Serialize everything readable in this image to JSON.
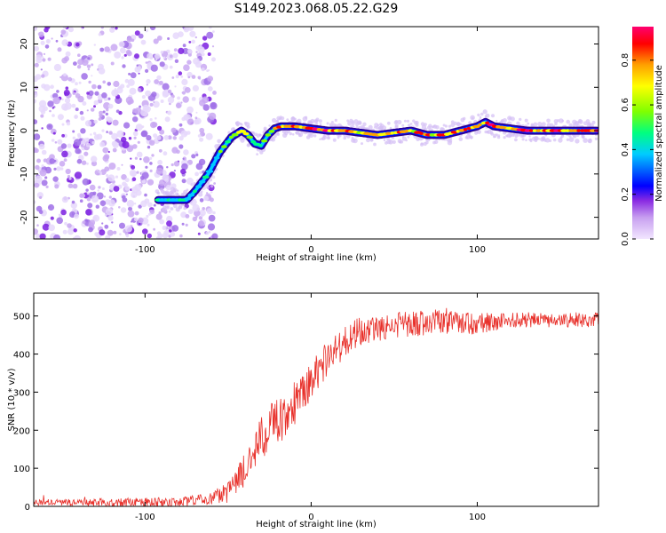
{
  "figure": {
    "title": "S149.2023.068.05.22.G29"
  },
  "colors": {
    "snr_line": "#e8302a",
    "frame": "#000000",
    "background": "#ffffff"
  },
  "chart_data": [
    {
      "type": "heatmap",
      "xlabel": "Height of straight line (km)",
      "ylabel": "Frequency (Hz)",
      "xlim": [
        -167,
        173
      ],
      "ylim": [
        -25,
        24
      ],
      "x_ticks": [
        "-100",
        "0",
        "100"
      ],
      "x_tick_values": [
        -100,
        0,
        100
      ],
      "y_ticks": [
        "-20",
        "-10",
        "0",
        "10",
        "20"
      ],
      "y_tick_values": [
        -20,
        -10,
        0,
        10,
        20
      ],
      "colorbar": {
        "label": "Normalized spectral amplitude",
        "range": [
          0.0,
          0.95
        ],
        "ticks": [
          "0.0",
          "0.2",
          "0.4",
          "0.6",
          "0.8"
        ],
        "tick_values": [
          0.0,
          0.2,
          0.4,
          0.6,
          0.8
        ],
        "colormap": [
          "#f2e6ff",
          "#c8a0f0",
          "#8a2be2",
          "#0000ff",
          "#00ccff",
          "#00ff80",
          "#80ff00",
          "#ffff00",
          "#ffa000",
          "#ff0000",
          "#ff0070"
        ]
      },
      "noise_region": {
        "x_range": [
          -167,
          -70
        ],
        "y_range": [
          -25,
          24
        ],
        "level": "low"
      },
      "ridge": {
        "x": [
          -92,
          -82,
          -75,
          -70,
          -62,
          -55,
          -48,
          -42,
          -38,
          -34,
          -30,
          -26,
          -22,
          -18,
          -10,
          0,
          10,
          20,
          30,
          40,
          50,
          60,
          70,
          80,
          90,
          100,
          105,
          110,
          120,
          130,
          140,
          150,
          160,
          172
        ],
        "y": [
          -16,
          -16,
          -16,
          -14,
          -10,
          -5,
          -1.5,
          0,
          -1,
          -3,
          -3.5,
          -1,
          0.5,
          1,
          1,
          0.5,
          0,
          0,
          -0.5,
          -1,
          -0.5,
          0,
          -1,
          -1,
          0,
          1,
          2,
          1,
          0.5,
          0,
          0,
          0,
          0,
          0
        ],
        "amplitude": [
          0.4,
          0.5,
          0.5,
          0.45,
          0.5,
          0.55,
          0.6,
          0.8,
          0.6,
          0.5,
          0.5,
          0.6,
          0.8,
          0.9,
          0.85,
          0.85,
          0.85,
          0.8,
          0.8,
          0.75,
          0.75,
          0.8,
          0.75,
          0.75,
          0.8,
          0.85,
          0.9,
          0.9,
          0.85,
          0.85,
          0.85,
          0.85,
          0.85,
          0.85
        ]
      }
    },
    {
      "type": "line",
      "xlabel": "Height of straight line (km)",
      "ylabel": "SNR (10 * v/v)",
      "xlim": [
        -167,
        173
      ],
      "ylim": [
        0,
        560
      ],
      "x_ticks": [
        "-100",
        "0",
        "100"
      ],
      "x_tick_values": [
        -100,
        0,
        100
      ],
      "y_ticks": [
        "0",
        "100",
        "200",
        "300",
        "400",
        "500"
      ],
      "y_tick_values": [
        0,
        100,
        200,
        300,
        400,
        500
      ],
      "trend": {
        "x": [
          -167,
          -120,
          -80,
          -60,
          -50,
          -45,
          -40,
          -35,
          -30,
          -25,
          -20,
          -15,
          -10,
          -5,
          0,
          5,
          10,
          15,
          20,
          25,
          30,
          40,
          50,
          60,
          80,
          100,
          120,
          140,
          160,
          173
        ],
        "y": [
          10,
          10,
          10,
          20,
          40,
          60,
          100,
          150,
          180,
          200,
          230,
          250,
          270,
          300,
          330,
          360,
          390,
          410,
          430,
          450,
          460,
          470,
          480,
          480,
          485,
          480,
          490,
          490,
          490,
          490
        ]
      },
      "noise_amplitude": {
        "x": [
          -167,
          -60,
          -45,
          -20,
          0,
          20,
          60,
          100,
          120,
          173
        ],
        "y": [
          8,
          15,
          40,
          70,
          50,
          40,
          35,
          30,
          20,
          20
        ]
      }
    }
  ]
}
